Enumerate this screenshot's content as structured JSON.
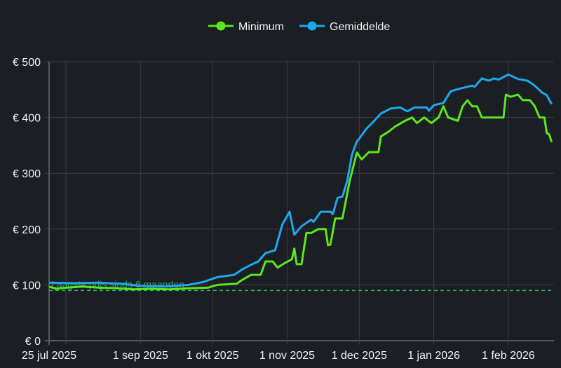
{
  "chart_data": {
    "type": "line",
    "title": "",
    "xlabel": "",
    "ylabel": "",
    "x_type": "date",
    "xlim": [
      "2025-07-25",
      "2026-02-20"
    ],
    "ylim": [
      0,
      500
    ],
    "grid": true,
    "legend_position": "top",
    "y_ticks": [
      0,
      100,
      200,
      300,
      400,
      500
    ],
    "y_tick_labels": [
      "€ 0",
      "€ 100",
      "€ 200",
      "€ 300",
      "€ 400",
      "€ 500"
    ],
    "x_ticks": [
      {
        "date": "2025-07-25",
        "label": "25 jul 2025"
      },
      {
        "date": "2025-08-01",
        "label": ""
      },
      {
        "date": "2025-09-01",
        "label": "1 sep 2025"
      },
      {
        "date": "2025-10-01",
        "label": "1 okt 2025"
      },
      {
        "date": "2025-11-01",
        "label": "1 nov 2025"
      },
      {
        "date": "2025-12-01",
        "label": "1 dec 2025"
      },
      {
        "date": "2026-01-01",
        "label": "1 jan 2026"
      },
      {
        "date": "2026-02-01",
        "label": "1 feb 2026"
      }
    ],
    "annotation": {
      "label": "Laagste prijs sinds 6 maanden",
      "value": 90,
      "color": "#2fb36a"
    },
    "series": [
      {
        "name": "Minimum",
        "color": "#5ce61c",
        "points": [
          [
            "2025-07-25",
            97
          ],
          [
            "2025-07-28",
            93
          ],
          [
            "2025-08-01",
            95
          ],
          [
            "2025-08-08",
            97
          ],
          [
            "2025-08-15",
            95
          ],
          [
            "2025-08-22",
            94
          ],
          [
            "2025-08-29",
            92
          ],
          [
            "2025-09-05",
            93
          ],
          [
            "2025-09-13",
            92
          ],
          [
            "2025-09-21",
            94
          ],
          [
            "2025-09-29",
            95
          ],
          [
            "2025-10-03",
            100
          ],
          [
            "2025-10-11",
            102
          ],
          [
            "2025-10-13",
            108
          ],
          [
            "2025-10-17",
            118
          ],
          [
            "2025-10-21",
            118
          ],
          [
            "2025-10-23",
            142
          ],
          [
            "2025-10-26",
            142
          ],
          [
            "2025-10-28",
            131
          ],
          [
            "2025-10-31",
            139
          ],
          [
            "2025-11-03",
            146
          ],
          [
            "2025-11-04",
            165
          ],
          [
            "2025-11-05",
            137
          ],
          [
            "2025-11-07",
            137
          ],
          [
            "2025-11-09",
            193
          ],
          [
            "2025-11-11",
            193
          ],
          [
            "2025-11-14",
            200
          ],
          [
            "2025-11-17",
            200
          ],
          [
            "2025-11-18",
            171
          ],
          [
            "2025-11-19",
            172
          ],
          [
            "2025-11-21",
            219
          ],
          [
            "2025-11-24",
            219
          ],
          [
            "2025-11-27",
            286
          ],
          [
            "2025-11-30",
            337
          ],
          [
            "2025-12-02",
            325
          ],
          [
            "2025-12-05",
            338
          ],
          [
            "2025-12-09",
            338
          ],
          [
            "2025-12-10",
            366
          ],
          [
            "2025-12-13",
            374
          ],
          [
            "2025-12-16",
            384
          ],
          [
            "2025-12-20",
            394
          ],
          [
            "2025-12-23",
            400
          ],
          [
            "2025-12-25",
            390
          ],
          [
            "2025-12-28",
            400
          ],
          [
            "2025-12-31",
            390
          ],
          [
            "2026-01-03",
            400
          ],
          [
            "2026-01-05",
            420
          ],
          [
            "2026-01-07",
            400
          ],
          [
            "2026-01-11",
            394
          ],
          [
            "2026-01-13",
            420
          ],
          [
            "2026-01-15",
            431
          ],
          [
            "2026-01-17",
            420
          ],
          [
            "2026-01-19",
            420
          ],
          [
            "2026-01-21",
            400
          ],
          [
            "2026-01-30",
            400
          ],
          [
            "2026-01-31",
            441
          ],
          [
            "2026-02-02",
            437
          ],
          [
            "2026-02-05",
            441
          ],
          [
            "2026-02-07",
            431
          ],
          [
            "2026-02-10",
            431
          ],
          [
            "2026-02-12",
            420
          ],
          [
            "2026-02-14",
            400
          ],
          [
            "2026-02-16",
            400
          ],
          [
            "2026-02-17",
            372
          ],
          [
            "2026-02-18",
            370
          ],
          [
            "2026-02-19",
            356
          ]
        ]
      },
      {
        "name": "Gemiddelde",
        "color": "#1ea8ec",
        "points": [
          [
            "2025-07-25",
            104
          ],
          [
            "2025-08-04",
            103
          ],
          [
            "2025-08-14",
            104
          ],
          [
            "2025-08-24",
            102
          ],
          [
            "2025-09-01",
            98
          ],
          [
            "2025-09-11",
            97
          ],
          [
            "2025-09-21",
            100
          ],
          [
            "2025-09-27",
            105
          ],
          [
            "2025-10-03",
            114
          ],
          [
            "2025-10-10",
            118
          ],
          [
            "2025-10-13",
            127
          ],
          [
            "2025-10-17",
            136
          ],
          [
            "2025-10-20",
            142
          ],
          [
            "2025-10-23",
            157
          ],
          [
            "2025-10-27",
            162
          ],
          [
            "2025-10-30",
            208
          ],
          [
            "2025-11-02",
            231
          ],
          [
            "2025-11-04",
            190
          ],
          [
            "2025-11-07",
            205
          ],
          [
            "2025-11-11",
            217
          ],
          [
            "2025-11-12",
            213
          ],
          [
            "2025-11-15",
            231
          ],
          [
            "2025-11-19",
            231
          ],
          [
            "2025-11-20",
            227
          ],
          [
            "2025-11-22",
            256
          ],
          [
            "2025-11-24",
            258
          ],
          [
            "2025-11-26",
            286
          ],
          [
            "2025-11-28",
            334
          ],
          [
            "2025-11-30",
            357
          ],
          [
            "2025-12-01",
            362
          ],
          [
            "2025-12-04",
            380
          ],
          [
            "2025-12-07",
            393
          ],
          [
            "2025-12-10",
            407
          ],
          [
            "2025-12-14",
            416
          ],
          [
            "2025-12-18",
            418
          ],
          [
            "2025-12-21",
            411
          ],
          [
            "2025-12-24",
            418
          ],
          [
            "2025-12-29",
            418
          ],
          [
            "2025-12-30",
            412
          ],
          [
            "2026-01-01",
            422
          ],
          [
            "2026-01-05",
            426
          ],
          [
            "2026-01-08",
            447
          ],
          [
            "2026-01-13",
            453
          ],
          [
            "2026-01-17",
            457
          ],
          [
            "2026-01-18",
            455
          ],
          [
            "2026-01-21",
            470
          ],
          [
            "2026-01-24",
            466
          ],
          [
            "2026-01-26",
            470
          ],
          [
            "2026-01-28",
            468
          ],
          [
            "2026-02-01",
            477
          ],
          [
            "2026-02-05",
            469
          ],
          [
            "2026-02-09",
            466
          ],
          [
            "2026-02-12",
            457
          ],
          [
            "2026-02-15",
            445
          ],
          [
            "2026-02-17",
            440
          ],
          [
            "2026-02-19",
            424
          ]
        ]
      }
    ]
  }
}
